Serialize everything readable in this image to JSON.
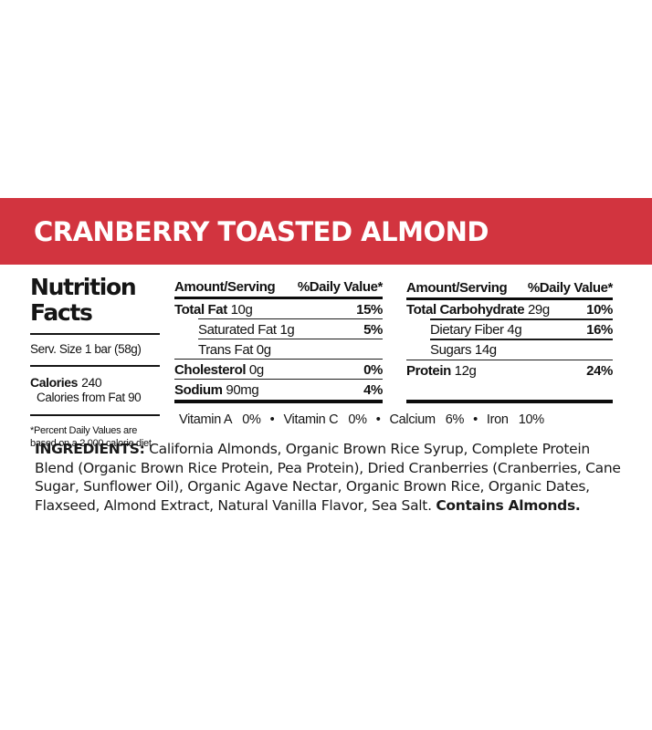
{
  "banner": {
    "title": "CRANBERRY TOASTED ALMOND",
    "background": "#D2343F",
    "text_color": "#FFFFFF"
  },
  "nutrition_facts": {
    "title": "Nutrition Facts",
    "serving": "Serv. Size 1 bar (58g)",
    "calories_label": "Calories",
    "calories_value": "240",
    "calories_from_fat": "Calories from Fat 90",
    "footnote": "*Percent Daily Values are based on a 2,000 calorie diet"
  },
  "tables": [
    {
      "headers": {
        "amount": "Amount/Serving",
        "dv": "%Daily Value*"
      },
      "rows": [
        {
          "bold": "Total Fat",
          "rest": " 10g",
          "pct": "15%"
        },
        {
          "bold": "",
          "rest": "Saturated Fat 1g",
          "pct": "5%"
        },
        {
          "bold": "",
          "rest": "Trans Fat 0g",
          "pct": ""
        },
        {
          "bold": "Cholesterol",
          "rest": " 0g",
          "pct": "0%"
        },
        {
          "bold": "Sodium",
          "rest": " 90mg",
          "pct": "4%"
        }
      ]
    },
    {
      "headers": {
        "amount": "Amount/Serving",
        "dv": "%Daily Value*"
      },
      "rows": [
        {
          "bold": "Total Carbohydrate",
          "rest": " 29g",
          "pct": "10%"
        },
        {
          "bold": "",
          "rest": "Dietary Fiber 4g",
          "pct": "16%"
        },
        {
          "bold": "",
          "rest": "Sugars 14g",
          "pct": ""
        },
        {
          "bold": "Protein",
          "rest": " 12g",
          "pct": "24%"
        }
      ]
    }
  ],
  "vitamins": {
    "separator": "•",
    "items": [
      {
        "label": "Vitamin A",
        "value": "0%"
      },
      {
        "label": "Vitamin C",
        "value": "0%"
      },
      {
        "label": "Calcium",
        "value": "6%"
      },
      {
        "label": "Iron",
        "value": "10%"
      }
    ]
  },
  "ingredients": {
    "lead": "INGREDIENTS:",
    "body": " California Almonds, Organic Brown Rice Syrup, Complete Protein Blend (Organic Brown Rice Protein, Pea Protein), Dried Cranberries (Cranberries, Cane Sugar, Sunflower Oil), Organic Agave Nectar, Organic Brown Rice, Organic Dates, Flaxseed, Almond Extract, Natural Vanilla Flavor, Sea Salt. ",
    "contains": "Contains Almonds."
  }
}
